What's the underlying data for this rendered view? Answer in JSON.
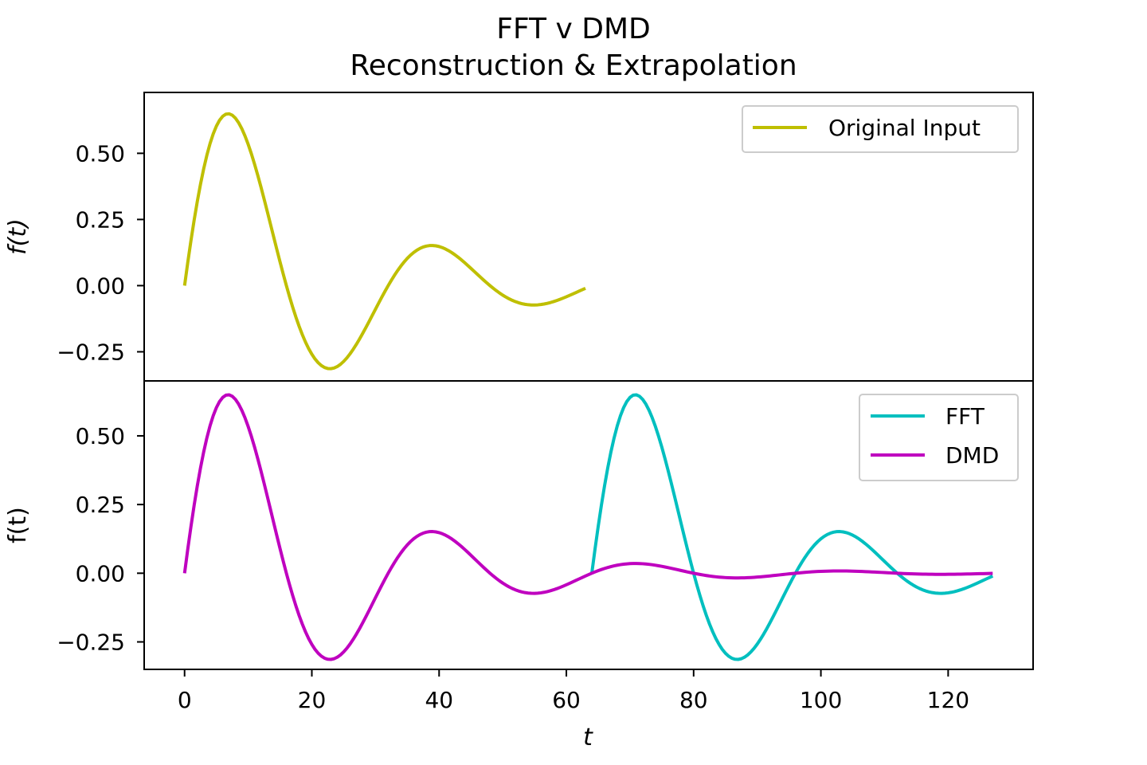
{
  "chart_data": {
    "type": "line",
    "title": "FFT v DMD",
    "subtitle": "Reconstruction & Extrapolation",
    "xlabel": "t",
    "xlim": [
      -6.35,
      133.35
    ],
    "xticks": [
      0,
      20,
      40,
      60,
      80,
      100,
      120
    ],
    "xtick_labels": [
      "0",
      "20",
      "40",
      "60",
      "80",
      "100",
      "120"
    ],
    "signal": {
      "form": "amplitude * exp(-t/decay) * sin(2*pi*t/period)",
      "amplitude": 0.91,
      "decay": 22,
      "period": 32,
      "samples": 64,
      "dmd_samples": 128
    },
    "panels": [
      {
        "ylabel": "f(t)",
        "ylabel_italic": true,
        "ylim": [
          -0.36,
          0.73
        ],
        "yticks": [
          0.5,
          0.25,
          0.0,
          -0.25
        ],
        "ytick_labels": [
          "0.50",
          "0.25",
          "0.00",
          "−0.25"
        ],
        "legend": {
          "position": "upper right",
          "entries": [
            "Original Input"
          ]
        },
        "series": [
          {
            "name": "Original Input",
            "color": "#bfbf00",
            "x_range": [
              0,
              63
            ],
            "source": "signal"
          }
        ]
      },
      {
        "ylabel": "f(t)",
        "ylabel_italic": false,
        "ylim": [
          -0.35,
          0.7
        ],
        "yticks": [
          0.5,
          0.25,
          0.0,
          -0.25
        ],
        "ytick_labels": [
          "0.50",
          "0.25",
          "0.00",
          "−0.25"
        ],
        "legend": {
          "position": "upper right",
          "entries": [
            "FFT",
            "DMD"
          ]
        },
        "series": [
          {
            "name": "FFT",
            "color": "#00bfbf",
            "x_range": [
              64,
              127
            ],
            "source": "signal_periodic"
          },
          {
            "name": "DMD",
            "color": "#bf00bf",
            "x_range": [
              0,
              127
            ],
            "source": "signal"
          }
        ]
      }
    ]
  }
}
